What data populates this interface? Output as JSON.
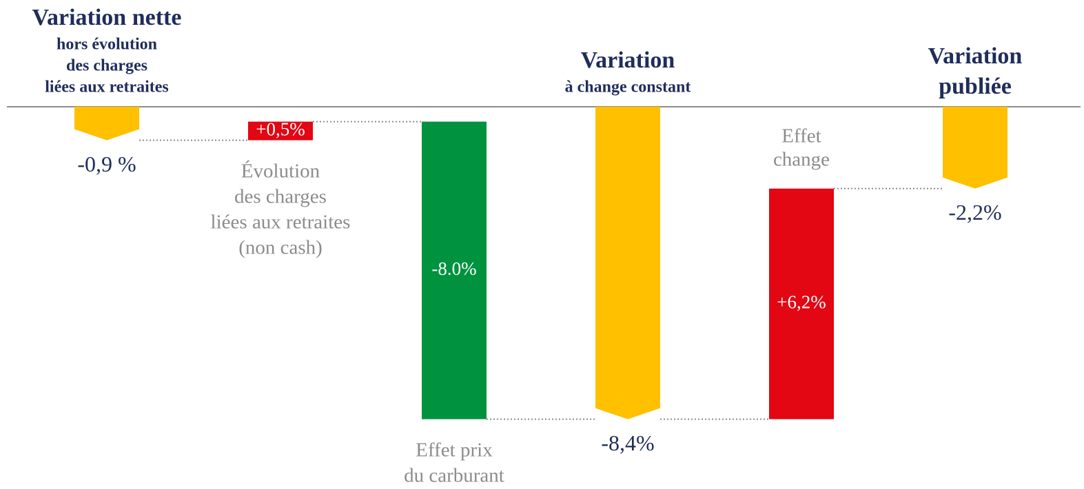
{
  "chart_data": {
    "type": "waterfall",
    "categories": [
      {
        "lines": [
          "Variation nette"
        ],
        "sublines": [
          "hors évolution",
          "des charges",
          "liées aux retraites"
        ]
      },
      {
        "lines": [
          "Évolution",
          "des charges",
          "liées aux retraites",
          "(non cash)"
        ],
        "sublines": []
      },
      {
        "lines": [
          "Effet prix",
          "du carburant"
        ],
        "sublines": []
      },
      {
        "lines": [
          "Variation"
        ],
        "sublines": [
          "à change constant"
        ]
      },
      {
        "lines": [
          "Effet",
          "change"
        ],
        "sublines": []
      },
      {
        "lines": [
          "Variation",
          "publiée"
        ],
        "sublines": []
      }
    ],
    "measure": [
      "absolute",
      "relative",
      "relative",
      "absolute",
      "relative",
      "absolute"
    ],
    "values": [
      -0.9,
      0.5,
      -8.0,
      -8.4,
      6.2,
      -2.2
    ],
    "value_labels": [
      "-0,9 %",
      "+0,5%",
      "-8.0%",
      "-8,4%",
      "+6,2%",
      "-2,2%"
    ],
    "colors": {
      "total": "#FFC000",
      "increase": "#E30613",
      "decrease": "#00923F"
    },
    "ylim": [
      -9,
      0
    ]
  }
}
